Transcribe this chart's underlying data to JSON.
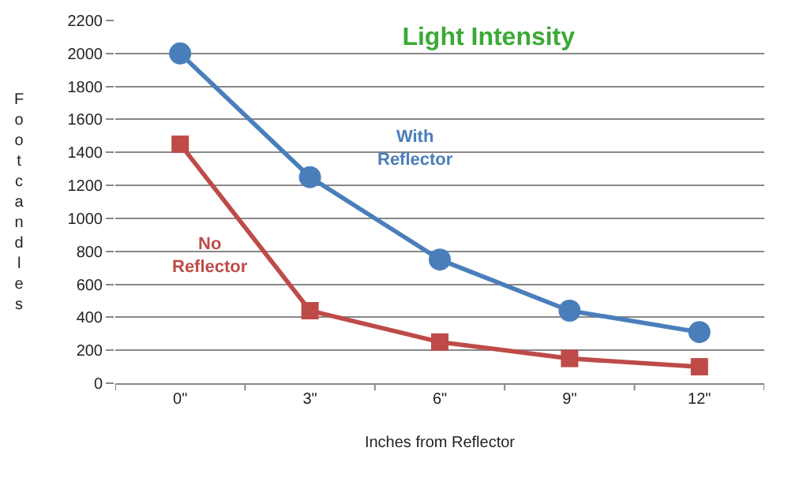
{
  "chart_data": {
    "type": "line",
    "title": "Light Intensity",
    "xlabel": "Inches from Reflector",
    "ylabel": "Footcandles",
    "categories": [
      "0\"",
      "3\"",
      "6\"",
      "9\"",
      "12\""
    ],
    "series": [
      {
        "name": "With Reflector",
        "color": "#4a7ebb",
        "marker": "circle",
        "values": [
          2000,
          1250,
          750,
          440,
          310
        ]
      },
      {
        "name": "No Reflector",
        "color": "#be4b48",
        "marker": "square",
        "values": [
          1450,
          440,
          250,
          150,
          100
        ]
      }
    ],
    "ylim": [
      0,
      2200
    ],
    "yticks": [
      0,
      200,
      400,
      600,
      800,
      1000,
      1200,
      1400,
      1600,
      1800,
      2000,
      2200
    ],
    "grid": "y",
    "legend": false,
    "line_style": "solid"
  }
}
